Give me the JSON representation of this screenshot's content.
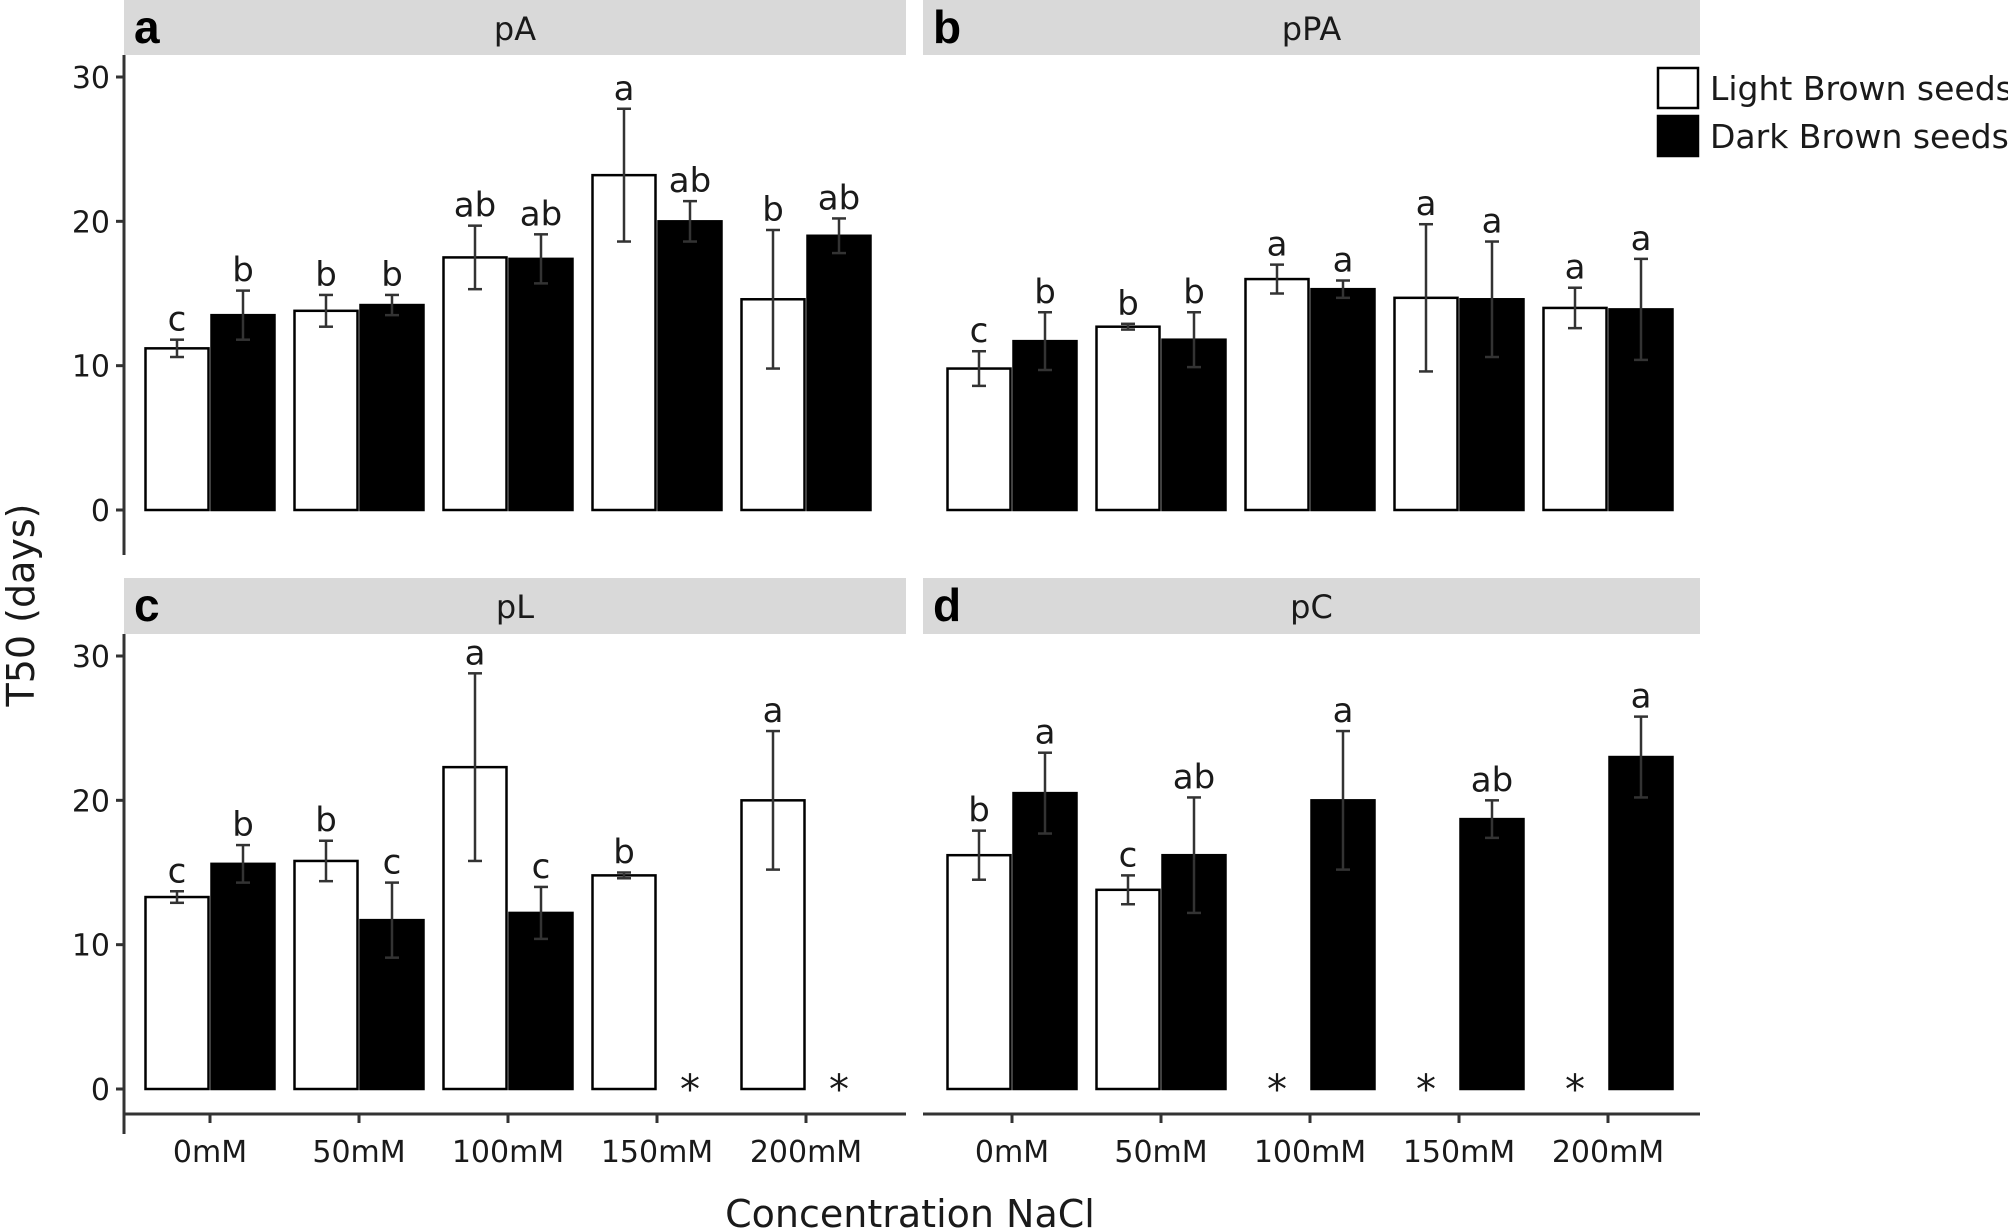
{
  "chart_data": {
    "type": "bar",
    "ylabel": "T50 (days)",
    "xlabel": "Concentration NaCl",
    "ylim": [
      0,
      30
    ],
    "yticks": [
      0,
      10,
      20,
      30
    ],
    "categories": [
      "0mM",
      "50mM",
      "100mM",
      "150mM",
      "200mM"
    ],
    "legend": {
      "position": "top-right",
      "entries": [
        {
          "name": "Light Brown seeds",
          "color": "#ffffff"
        },
        {
          "name": "Dark Brown seeds",
          "color": "#000000"
        }
      ]
    },
    "missing_marker": "*",
    "panels": [
      {
        "letter": "a",
        "strip": "pA",
        "series": [
          {
            "name": "Light Brown seeds",
            "values": [
              11.2,
              13.8,
              17.5,
              23.2,
              14.6
            ],
            "err": [
              0.6,
              1.1,
              2.2,
              4.6,
              4.8
            ],
            "labels": [
              "c",
              "b",
              "ab",
              "a",
              "b"
            ]
          },
          {
            "name": "Dark Brown seeds",
            "values": [
              13.5,
              14.2,
              17.4,
              20.0,
              19.0
            ],
            "err": [
              1.7,
              0.7,
              1.7,
              1.4,
              1.2
            ],
            "labels": [
              "b",
              "b",
              "ab",
              "ab",
              "ab"
            ]
          }
        ]
      },
      {
        "letter": "b",
        "strip": "pPA",
        "series": [
          {
            "name": "Light Brown seeds",
            "values": [
              9.8,
              12.7,
              16.0,
              14.7,
              14.0
            ],
            "err": [
              1.2,
              0.2,
              1.0,
              5.1,
              1.4
            ],
            "labels": [
              "c",
              "b",
              "a",
              "a",
              "a"
            ]
          },
          {
            "name": "Dark Brown seeds",
            "values": [
              11.7,
              11.8,
              15.3,
              14.6,
              13.9
            ],
            "err": [
              2.0,
              1.9,
              0.6,
              4.0,
              3.5
            ],
            "labels": [
              "b",
              "b",
              "a",
              "a",
              "a"
            ]
          }
        ]
      },
      {
        "letter": "c",
        "strip": "pL",
        "series": [
          {
            "name": "Light Brown seeds",
            "values": [
              13.3,
              15.8,
              22.3,
              14.8,
              20.0
            ],
            "err": [
              0.4,
              1.4,
              6.5,
              0.2,
              4.8
            ],
            "labels": [
              "c",
              "b",
              "a",
              "b",
              "a"
            ]
          },
          {
            "name": "Dark Brown seeds",
            "values": [
              15.6,
              11.7,
              12.2,
              null,
              null
            ],
            "err": [
              1.3,
              2.6,
              1.8,
              null,
              null
            ],
            "labels": [
              "b",
              "c",
              "c",
              "",
              ""
            ]
          }
        ]
      },
      {
        "letter": "d",
        "strip": "pC",
        "series": [
          {
            "name": "Light Brown seeds",
            "values": [
              16.2,
              13.8,
              null,
              null,
              null
            ],
            "err": [
              1.7,
              1.0,
              null,
              null,
              null
            ],
            "labels": [
              "b",
              "c",
              "",
              "",
              ""
            ]
          },
          {
            "name": "Dark Brown seeds",
            "values": [
              20.5,
              16.2,
              20.0,
              18.7,
              23.0
            ],
            "err": [
              2.8,
              4.0,
              4.8,
              1.3,
              2.8
            ],
            "labels": [
              "a",
              "ab",
              "a",
              "ab",
              "a"
            ]
          }
        ]
      }
    ]
  }
}
